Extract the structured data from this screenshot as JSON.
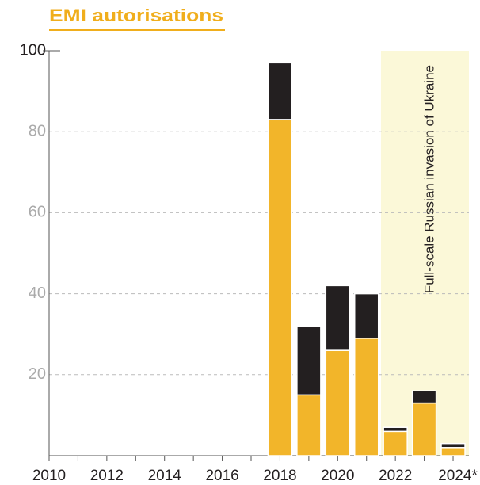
{
  "chart_data": {
    "type": "stacked_bar",
    "title": "EMI autorisations",
    "annotation": "Full-scale Russian invasion of Ukraine",
    "categories": [
      "2010",
      null,
      "2012",
      null,
      "2014",
      null,
      "2016",
      null,
      "2018",
      null,
      "2020",
      null,
      "2022",
      null,
      "2024*"
    ],
    "series": [
      {
        "color": "#f2b52a",
        "values": [
          null,
          null,
          null,
          null,
          null,
          null,
          null,
          null,
          83,
          15,
          26,
          29,
          6,
          13,
          2
        ]
      },
      {
        "color": "#231f20",
        "values": [
          null,
          null,
          null,
          null,
          null,
          null,
          null,
          null,
          14,
          17,
          16,
          11,
          1,
          3,
          1
        ]
      }
    ],
    "ylim": [
      0,
      100
    ],
    "yticks": [
      20,
      40,
      60,
      80,
      100
    ],
    "grid": true
  }
}
